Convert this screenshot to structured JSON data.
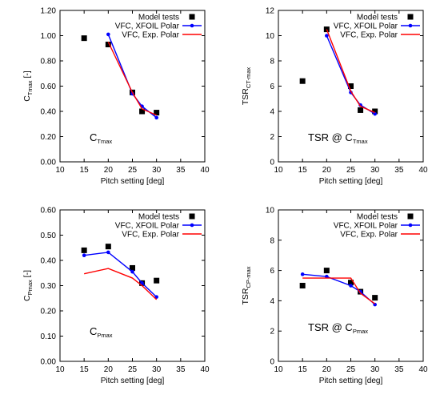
{
  "colors": {
    "model": "#000000",
    "xfoil": "#0000ff",
    "exp": "#ff0000"
  },
  "chart_data": [
    {
      "id": "ct",
      "type": "line",
      "ylabel": {
        "main": "C",
        "sub": "Tmax",
        "unit": " [-]"
      },
      "xlabel": "Pitch setting [deg]",
      "xlim": [
        10,
        40
      ],
      "xticks": [
        10,
        15,
        20,
        25,
        30,
        35,
        40
      ],
      "ylim": [
        0,
        1.2
      ],
      "yticks": [
        0.0,
        0.2,
        0.4,
        0.6,
        0.8,
        1.0,
        1.2
      ],
      "ydecimals": 2,
      "annotation": {
        "main": "C",
        "sub": "Tmax"
      },
      "legend": [
        "Model tests",
        "VFC, XFOIL Polar",
        "VFC,  Exp. Polar"
      ],
      "series": [
        {
          "name": "Model tests",
          "kind": "marker",
          "x": [
            15,
            20,
            25,
            27,
            30
          ],
          "y": [
            0.98,
            0.93,
            0.55,
            0.4,
            0.39
          ]
        },
        {
          "name": "VFC, XFOIL Polar",
          "kind": "line-marker",
          "x": [
            20,
            25,
            27,
            30
          ],
          "y": [
            1.01,
            0.54,
            0.44,
            0.35
          ]
        },
        {
          "name": "VFC,  Exp. Polar",
          "kind": "line",
          "x": [
            20,
            25,
            27,
            30
          ],
          "y": [
            0.95,
            0.55,
            0.42,
            0.37
          ]
        }
      ]
    },
    {
      "id": "tsrct",
      "type": "line",
      "ylabel": {
        "main": "TSR",
        "sub": "CT-max",
        "unit": ""
      },
      "xlabel": "Pitch setting [deg]",
      "xlim": [
        10,
        40
      ],
      "xticks": [
        10,
        15,
        20,
        25,
        30,
        35,
        40
      ],
      "ylim": [
        0,
        12
      ],
      "yticks": [
        0,
        2,
        4,
        6,
        8,
        10,
        12
      ],
      "ydecimals": 0,
      "annotation": {
        "main": "TSR @ C",
        "sub": "Tmax"
      },
      "legend": [
        "Model tests",
        "VFC, XFOIL Polar",
        "VFC,  Exp. Polar"
      ],
      "series": [
        {
          "name": "Model tests",
          "kind": "marker",
          "x": [
            15,
            20,
            25,
            27,
            30
          ],
          "y": [
            6.4,
            10.5,
            6.0,
            4.1,
            4.0
          ]
        },
        {
          "name": "VFC, XFOIL Polar",
          "kind": "line-marker",
          "x": [
            20,
            25,
            27,
            30
          ],
          "y": [
            10.0,
            5.5,
            4.5,
            3.8
          ]
        },
        {
          "name": "VFC,  Exp. Polar",
          "kind": "line",
          "x": [
            20,
            25,
            27,
            30
          ],
          "y": [
            10.5,
            5.6,
            4.4,
            3.9
          ]
        }
      ]
    },
    {
      "id": "cp",
      "type": "line",
      "ylabel": {
        "main": "C",
        "sub": "Pmax",
        "unit": " [-]"
      },
      "xlabel": "Pitch setting [deg]",
      "xlim": [
        10,
        40
      ],
      "xticks": [
        10,
        15,
        20,
        25,
        30,
        35,
        40
      ],
      "ylim": [
        0,
        0.6
      ],
      "yticks": [
        0.0,
        0.1,
        0.2,
        0.3,
        0.4,
        0.5,
        0.6
      ],
      "ydecimals": 2,
      "annotation": {
        "main": "C",
        "sub": "Pmax"
      },
      "legend": [
        "Model tests",
        "VFC, XFOIL Polar",
        "VFC,  Exp. Polar"
      ],
      "series": [
        {
          "name": "Model tests",
          "kind": "marker",
          "x": [
            15,
            20,
            25,
            27,
            30
          ],
          "y": [
            0.44,
            0.455,
            0.37,
            0.31,
            0.32
          ]
        },
        {
          "name": "VFC, XFOIL Polar",
          "kind": "line-marker",
          "x": [
            15,
            20,
            25,
            27,
            30
          ],
          "y": [
            0.42,
            0.432,
            0.355,
            0.31,
            0.255
          ]
        },
        {
          "name": "VFC,  Exp. Polar",
          "kind": "line",
          "x": [
            15,
            20,
            25,
            27,
            30
          ],
          "y": [
            0.347,
            0.368,
            0.33,
            0.3,
            0.245
          ]
        }
      ]
    },
    {
      "id": "tsrcp",
      "type": "line",
      "ylabel": {
        "main": "TSR",
        "sub": "CP-max",
        "unit": ""
      },
      "xlabel": "Pitch setting [deg]",
      "xlim": [
        10,
        40
      ],
      "xticks": [
        10,
        15,
        20,
        25,
        30,
        35,
        40
      ],
      "ylim": [
        0,
        10
      ],
      "yticks": [
        0,
        2,
        4,
        6,
        8,
        10
      ],
      "ydecimals": 0,
      "annotation": {
        "main": "TSR @ C",
        "sub": "Pmax"
      },
      "legend": [
        "Model tests",
        "VFC, XFOIL Polar",
        "VFC,  Exp. Polar"
      ],
      "series": [
        {
          "name": "Model tests",
          "kind": "marker",
          "x": [
            15,
            20,
            25,
            27,
            30
          ],
          "y": [
            5.0,
            6.0,
            5.2,
            4.6,
            4.2
          ]
        },
        {
          "name": "VFC, XFOIL Polar",
          "kind": "line-marker",
          "x": [
            15,
            20,
            25,
            27,
            30
          ],
          "y": [
            5.75,
            5.6,
            5.0,
            4.6,
            3.75
          ]
        },
        {
          "name": "VFC,  Exp. Polar",
          "kind": "line",
          "x": [
            15,
            20,
            25,
            27,
            30
          ],
          "y": [
            5.5,
            5.5,
            5.5,
            4.5,
            3.8
          ]
        }
      ]
    }
  ]
}
